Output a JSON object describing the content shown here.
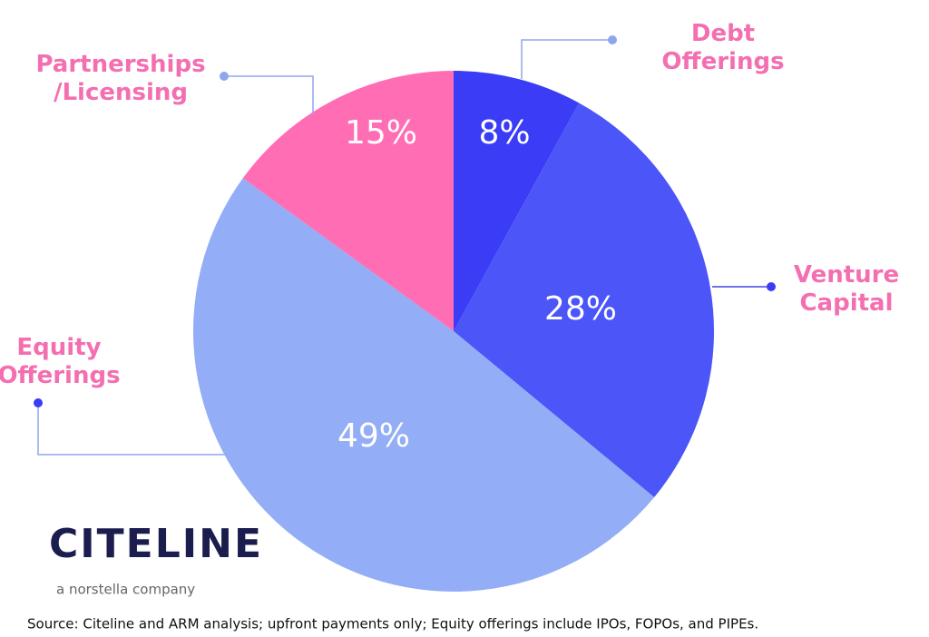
{
  "chart_data": {
    "type": "pie",
    "categories": [
      "Debt Offerings",
      "Venture Capital",
      "Equity Offerings",
      "Partnerships /Licensing"
    ],
    "values": [
      8,
      28,
      49,
      15
    ],
    "value_labels": [
      "8%",
      "28%",
      "49%",
      "15%"
    ],
    "colors": [
      "#3a3cf6",
      "#4b55f8",
      "#93adf6",
      "#ff6eb4"
    ]
  },
  "logo": {
    "name": "CITELINE",
    "tagline": "a norstella company"
  },
  "source": "Source: Citeline and ARM analysis; upfront payments only; Equity offerings include IPOs, FOPOs, and PIPEs."
}
